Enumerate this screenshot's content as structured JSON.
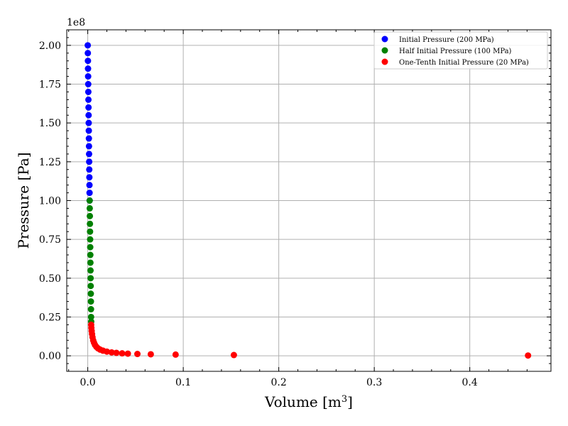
{
  "chart_data": {
    "type": "scatter",
    "title": "",
    "xlabel": "Volume [m",
    "xlabel_sup": "3",
    "xlabel_end": "]",
    "ylabel": "Pressure [Pa]",
    "y_offset_text": "1e8",
    "xlim": [
      -0.022,
      0.485
    ],
    "ylim": [
      -10000000.0,
      210000000.0
    ],
    "x_ticks": [
      0.0,
      0.1,
      0.2,
      0.3,
      0.4
    ],
    "x_tick_labels": [
      "0.0",
      "0.1",
      "0.2",
      "0.3",
      "0.4"
    ],
    "y_ticks": [
      0.0,
      25000000.0,
      50000000.0,
      75000000.0,
      100000000.0,
      125000000.0,
      150000000.0,
      175000000.0,
      200000000.0
    ],
    "y_tick_labels": [
      "0.00",
      "0.25",
      "0.50",
      "0.75",
      "1.00",
      "1.25",
      "1.50",
      "1.75",
      "2.00"
    ],
    "grid": true,
    "legend_position": "top-right",
    "series": [
      {
        "name": "Initial Pressure (200 MPa)",
        "color": "#0000ff",
        "points": [
          [
            0.0,
            200000000.0
          ],
          [
            0.0001,
            195000000.0
          ],
          [
            0.0002,
            190000000.0
          ],
          [
            0.0003,
            185000000.0
          ],
          [
            0.0004,
            180000000.0
          ],
          [
            0.0005,
            175000000.0
          ],
          [
            0.0006,
            170000000.0
          ],
          [
            0.0007,
            165000000.0
          ],
          [
            0.0008,
            160000000.0
          ],
          [
            0.0009,
            155000000.0
          ],
          [
            0.001,
            150000000.0
          ],
          [
            0.0011,
            145000000.0
          ],
          [
            0.0012,
            140000000.0
          ],
          [
            0.0013,
            135000000.0
          ],
          [
            0.0014,
            130000000.0
          ],
          [
            0.0015,
            125000000.0
          ],
          [
            0.0016,
            120000000.0
          ],
          [
            0.0017,
            115000000.0
          ],
          [
            0.0018,
            110000000.0
          ],
          [
            0.0019,
            105000000.0
          ],
          [
            0.002,
            100000000.0
          ]
        ]
      },
      {
        "name": "Half Initial Pressure (100 MPa)",
        "color": "#008000",
        "points": [
          [
            0.002,
            100000000.0
          ],
          [
            0.0021,
            95000000.0
          ],
          [
            0.0022,
            90000000.0
          ],
          [
            0.0023,
            85000000.0
          ],
          [
            0.0024,
            80000000.0
          ],
          [
            0.0025,
            75000000.0
          ],
          [
            0.0026,
            70000000.0
          ],
          [
            0.0027,
            65000000.0
          ],
          [
            0.0028,
            60000000.0
          ],
          [
            0.0029,
            55000000.0
          ],
          [
            0.003,
            50000000.0
          ],
          [
            0.0031,
            45000000.0
          ],
          [
            0.0032,
            40000000.0
          ],
          [
            0.0033,
            35000000.0
          ],
          [
            0.0034,
            30000000.0
          ],
          [
            0.0035,
            25000000.0
          ],
          [
            0.0036,
            22000000.0
          ]
        ]
      },
      {
        "name": "One-Tenth Initial Pressure (20 MPa)",
        "color": "#ff0000",
        "points": [
          [
            0.0036,
            20000000.0
          ],
          [
            0.0038,
            18000000.0
          ],
          [
            0.0041,
            16000000.0
          ],
          [
            0.0045,
            14000000.0
          ],
          [
            0.005,
            12000000.0
          ],
          [
            0.0057,
            10000000.0
          ],
          [
            0.0065,
            8500000.0
          ],
          [
            0.0076,
            7000000.0
          ],
          [
            0.009,
            5800000.0
          ],
          [
            0.0108,
            4800000.0
          ],
          [
            0.013,
            4000000.0
          ],
          [
            0.016,
            3300000.0
          ],
          [
            0.02,
            2700000.0
          ],
          [
            0.025,
            2200000.0
          ],
          [
            0.03,
            1900000.0
          ],
          [
            0.036,
            1600000.0
          ],
          [
            0.042,
            1400000.0
          ],
          [
            0.052,
            1200000.0
          ],
          [
            0.066,
            1000000.0
          ],
          [
            0.092,
            800000.0
          ],
          [
            0.153,
            500000.0
          ],
          [
            0.461,
            200000.0
          ]
        ]
      }
    ]
  }
}
